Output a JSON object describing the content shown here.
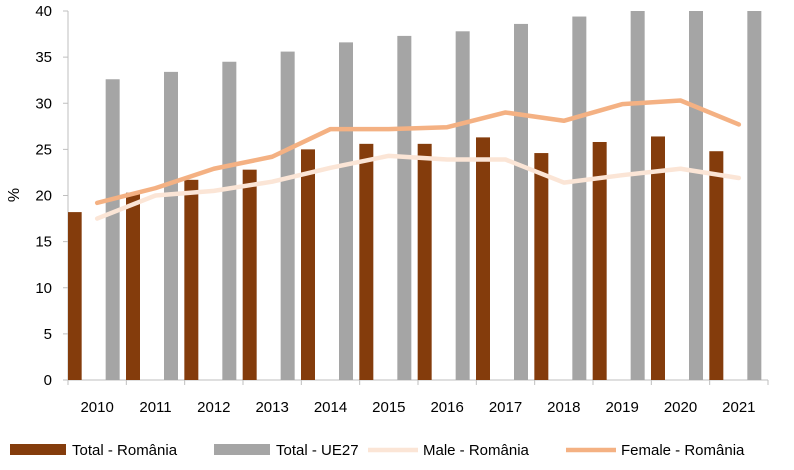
{
  "chart_data": {
    "type": "bar",
    "categories": [
      "2010",
      "2011",
      "2012",
      "2013",
      "2014",
      "2015",
      "2016",
      "2017",
      "2018",
      "2019",
      "2020",
      "2021"
    ],
    "ylabel": "%",
    "ylim": [
      0,
      40
    ],
    "yticks": [
      0,
      5,
      10,
      15,
      20,
      25,
      30,
      35,
      40
    ],
    "grid": false,
    "legend_position": "bottom",
    "bar_series": [
      {
        "name": "Total - România",
        "color": "#843c0c",
        "values": [
          18.2,
          20.3,
          21.7,
          22.8,
          25.0,
          25.6,
          25.6,
          26.3,
          24.6,
          25.8,
          26.4,
          24.8
        ]
      },
      {
        "name": "Total - UE27",
        "color": "#a5a5a5",
        "values": [
          32.6,
          33.4,
          34.5,
          35.6,
          36.6,
          37.3,
          37.8,
          38.6,
          39.4,
          40.3,
          41.0,
          41.2
        ]
      }
    ],
    "line_series": [
      {
        "name": "Male - România",
        "color": "#fbe5d6",
        "values": [
          17.5,
          20.0,
          20.5,
          21.5,
          23.0,
          24.3,
          23.9,
          23.9,
          21.4,
          22.2,
          22.9,
          21.9
        ]
      },
      {
        "name": "Female - România",
        "color": "#f4b183",
        "values": [
          19.2,
          20.8,
          22.9,
          24.2,
          27.2,
          27.2,
          27.4,
          29.0,
          28.1,
          29.9,
          30.3,
          27.7
        ]
      }
    ]
  }
}
